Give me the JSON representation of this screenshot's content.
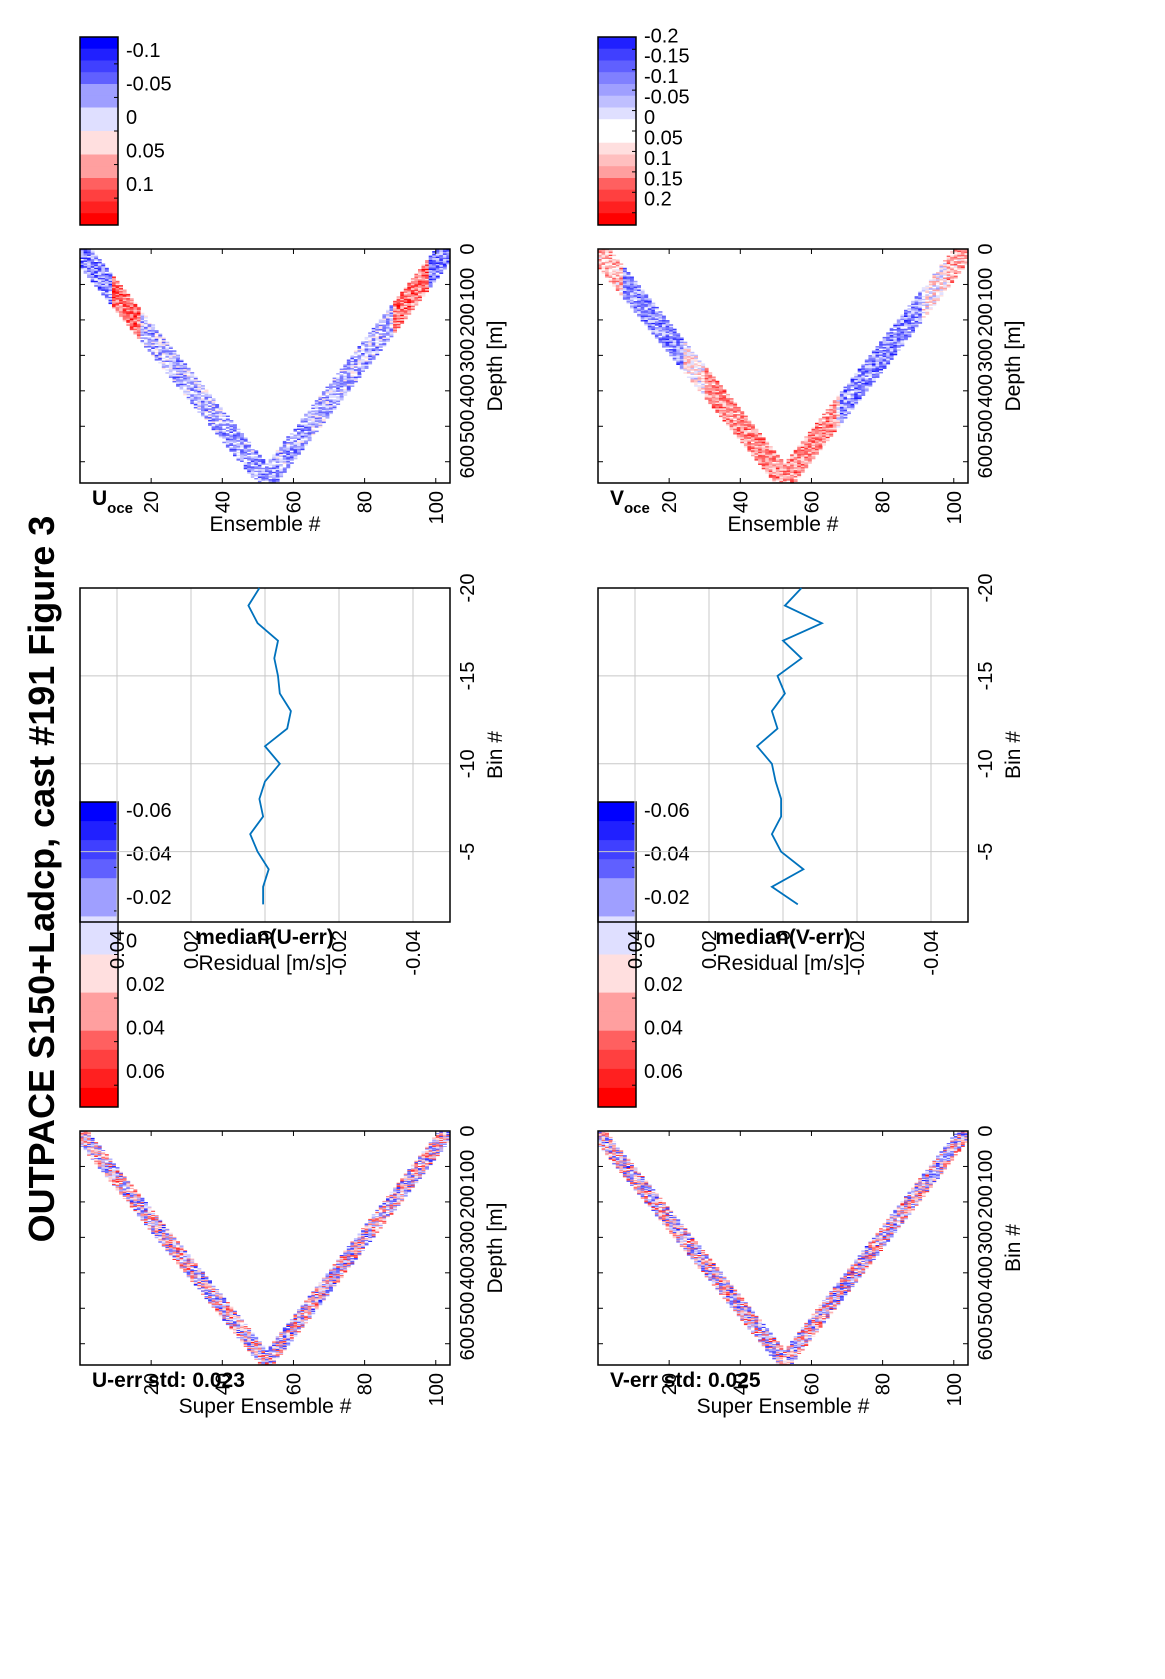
{
  "figure": {
    "title": "OUTPACE S150+Ladcp, cast #191  Figure 3"
  },
  "chart_data": [
    {
      "type": "heatmap",
      "title": "U-err std: 0.023",
      "xlabel": "Super Ensemble #",
      "ylabel": "Depth [m]",
      "xticks": [
        "20",
        "40",
        "60",
        "80",
        "100"
      ],
      "yticks": [
        "0",
        "100",
        "200",
        "300",
        "400",
        "500",
        "600"
      ],
      "xlim": [
        0,
        104
      ],
      "ylim": [
        0,
        660
      ],
      "colorbar": {
        "range": [
          -0.07,
          0.07
        ],
        "ticks": [
          "0.06",
          "0.04",
          "0.02",
          "0",
          "-0.02",
          "-0.04",
          "-0.06"
        ],
        "colormap": "red-white-blue"
      },
      "pattern": {
        "shape": "V",
        "bottom_ensemble": 53,
        "max_depth": 650,
        "band_depth": 65,
        "bias": 0,
        "noise": 1.0
      }
    },
    {
      "type": "line",
      "title": "median(U-err)",
      "xlabel": "Residual [m/s]",
      "ylabel": "Bin #",
      "xticks": [
        "-0.04",
        "-0.02",
        "0",
        "0.02",
        "0.04"
      ],
      "yticks": [
        "-5",
        "-10",
        "-15",
        "-20"
      ],
      "xlim": [
        -0.05,
        0.05
      ],
      "ylim": [
        -20,
        -1
      ],
      "series": [
        {
          "bin": [
            -2,
            -3,
            -4,
            -5,
            -6,
            -7,
            -8,
            -9,
            -10,
            -11,
            -12,
            -13,
            -14,
            -15,
            -16,
            -17,
            -18,
            -19,
            -20
          ],
          "residual": [
            0.0005,
            0.0005,
            -0.001,
            0.002,
            0.004,
            0.0005,
            0.0015,
            0.0,
            -0.004,
            0.0,
            -0.006,
            -0.007,
            -0.004,
            -0.0035,
            -0.0025,
            -0.0035,
            0.002,
            0.0045,
            0.0015
          ]
        }
      ]
    },
    {
      "type": "heatmap",
      "title": "U",
      "title_subscript": "oce",
      "xlabel": "Ensemble #",
      "ylabel": "Depth [m]",
      "xticks": [
        "20",
        "40",
        "60",
        "80",
        "100"
      ],
      "yticks": [
        "0",
        "100",
        "200",
        "300",
        "400",
        "500",
        "600"
      ],
      "xlim": [
        0,
        104
      ],
      "ylim": [
        0,
        660
      ],
      "colorbar": {
        "range": [
          -0.14,
          0.14
        ],
        "ticks": [
          "0.1",
          "0.05",
          "0",
          "-0.05",
          "-0.1"
        ],
        "colormap": "red-white-blue"
      },
      "pattern": {
        "shape": "V",
        "bottom_ensemble": 53,
        "max_depth": 650,
        "band_depth": 90,
        "bias": -0.3,
        "noise": 0.55
      }
    },
    {
      "type": "heatmap",
      "title": "V-err std: 0.025",
      "xlabel": "Super Ensemble #",
      "ylabel": "Bin #",
      "xticks": [
        "20",
        "40",
        "60",
        "80",
        "100"
      ],
      "yticks": [
        "0",
        "100",
        "200",
        "300",
        "400",
        "500",
        "600"
      ],
      "xlim": [
        0,
        104
      ],
      "ylim": [
        0,
        660
      ],
      "colorbar": {
        "range": [
          -0.07,
          0.07
        ],
        "ticks": [
          "0.06",
          "0.04",
          "0.02",
          "0",
          "-0.02",
          "-0.04",
          "-0.06"
        ],
        "colormap": "red-white-blue"
      },
      "pattern": {
        "shape": "V",
        "bottom_ensemble": 53,
        "max_depth": 650,
        "band_depth": 65,
        "bias": 0,
        "noise": 1.0
      }
    },
    {
      "type": "line",
      "title": "median(V-err)",
      "xlabel": "Residual [m/s]",
      "ylabel": "Bin #",
      "xticks": [
        "-0.04",
        "-0.02",
        "0",
        "0.02",
        "0.04"
      ],
      "yticks": [
        "-5",
        "-10",
        "-15",
        "-20"
      ],
      "xlim": [
        -0.05,
        0.05
      ],
      "ylim": [
        -20,
        -1
      ],
      "series": [
        {
          "bin": [
            -2,
            -3,
            -4,
            -5,
            -6,
            -7,
            -8,
            -9,
            -10,
            -11,
            -12,
            -13,
            -14,
            -15,
            -16,
            -17,
            -18,
            -19,
            -20
          ],
          "residual": [
            -0.004,
            0.003,
            -0.0055,
            0.0005,
            0.003,
            0.0005,
            0.0005,
            0.002,
            0.003,
            0.007,
            0.0015,
            0.003,
            -0.0005,
            0.0015,
            -0.005,
            0.0,
            -0.0105,
            -0.0005,
            -0.005
          ]
        }
      ]
    },
    {
      "type": "heatmap",
      "title": "V",
      "title_subscript": "oce",
      "xlabel": "Ensemble #",
      "ylabel": "Depth [m]",
      "xticks": [
        "20",
        "40",
        "60",
        "80",
        "100"
      ],
      "yticks": [
        "0",
        "100",
        "200",
        "300",
        "400",
        "500",
        "600"
      ],
      "xlim": [
        0,
        104
      ],
      "ylim": [
        0,
        660
      ],
      "colorbar": {
        "range": [
          -0.23,
          0.23
        ],
        "ticks": [
          "0.2",
          "0.15",
          "0.1",
          "0.05",
          "0",
          "-0.05",
          "-0.1",
          "-0.15",
          "-0.2"
        ],
        "colormap": "red-white-blue"
      },
      "pattern": {
        "shape": "V",
        "bottom_ensemble": 53,
        "max_depth": 650,
        "band_depth": 90,
        "bias": 0.0,
        "noise": 0.5
      }
    }
  ]
}
